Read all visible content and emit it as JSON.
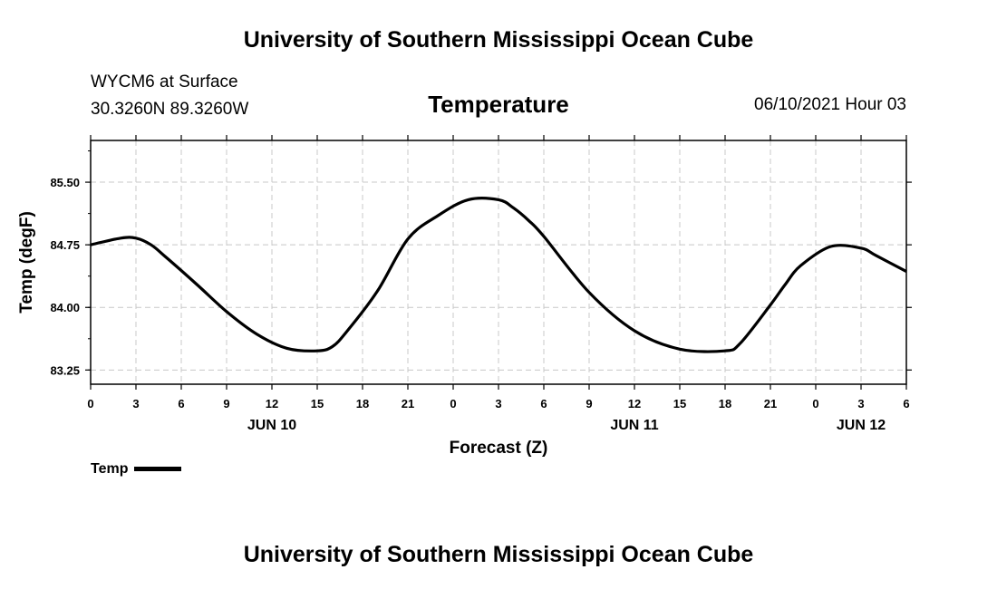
{
  "header": {
    "title": "University of Southern Mississippi Ocean Cube",
    "station_line1": "WYCM6 at Surface",
    "station_line2": "30.3260N  89.3260W",
    "datetime": "06/10/2021 Hour 03"
  },
  "footer": {
    "title": "University of Southern Mississippi Ocean Cube"
  },
  "chart_data": {
    "type": "line",
    "title": "Temperature",
    "xlabel": "Forecast (Z)",
    "ylabel": "Temp (degF)",
    "x_unit": "hours (Z) from 00Z JUN 10",
    "xlim": [
      -15,
      39
    ],
    "ylim": [
      83.08,
      86.0
    ],
    "y_ticks": [
      83.25,
      84.0,
      84.75,
      85.5
    ],
    "y_tick_labels": [
      "83.25",
      "84.00",
      "84.75",
      "85.50"
    ],
    "x_ticks": [
      -15,
      -12,
      -9,
      -6,
      -3,
      0,
      3,
      6,
      9,
      12,
      15,
      18,
      21,
      24,
      27,
      30,
      33,
      36,
      39
    ],
    "x_tick_labels": [
      "0",
      "3",
      "6",
      "9",
      "12",
      "15",
      "18",
      "21",
      "0",
      "3",
      "6",
      "9",
      "12",
      "15",
      "18",
      "21",
      "0",
      "3",
      "6"
    ],
    "date_labels": [
      {
        "x": -3,
        "text": "JUN 10"
      },
      {
        "x": 21,
        "text": "JUN 11"
      },
      {
        "x": 36,
        "text": "JUN 12"
      }
    ],
    "grid": true,
    "legend_position": "bottom-left",
    "series": [
      {
        "name": "Temp",
        "color": "#000000",
        "x": [
          -15,
          -13,
          -12,
          -11,
          -10,
          -8,
          -6,
          -4,
          -2,
          0,
          1,
          2,
          4,
          6,
          8,
          10,
          12,
          13,
          14,
          15,
          18,
          21,
          24,
          27,
          28,
          30,
          31,
          32,
          34,
          36,
          37,
          39
        ],
        "y": [
          84.75,
          84.83,
          84.83,
          84.75,
          84.6,
          84.28,
          83.95,
          83.68,
          83.51,
          83.48,
          83.53,
          83.72,
          84.2,
          84.82,
          85.1,
          85.29,
          85.29,
          85.19,
          85.04,
          84.85,
          84.18,
          83.72,
          83.5,
          83.48,
          83.57,
          84.03,
          84.28,
          84.5,
          84.73,
          84.71,
          84.62,
          84.43
        ]
      }
    ]
  }
}
